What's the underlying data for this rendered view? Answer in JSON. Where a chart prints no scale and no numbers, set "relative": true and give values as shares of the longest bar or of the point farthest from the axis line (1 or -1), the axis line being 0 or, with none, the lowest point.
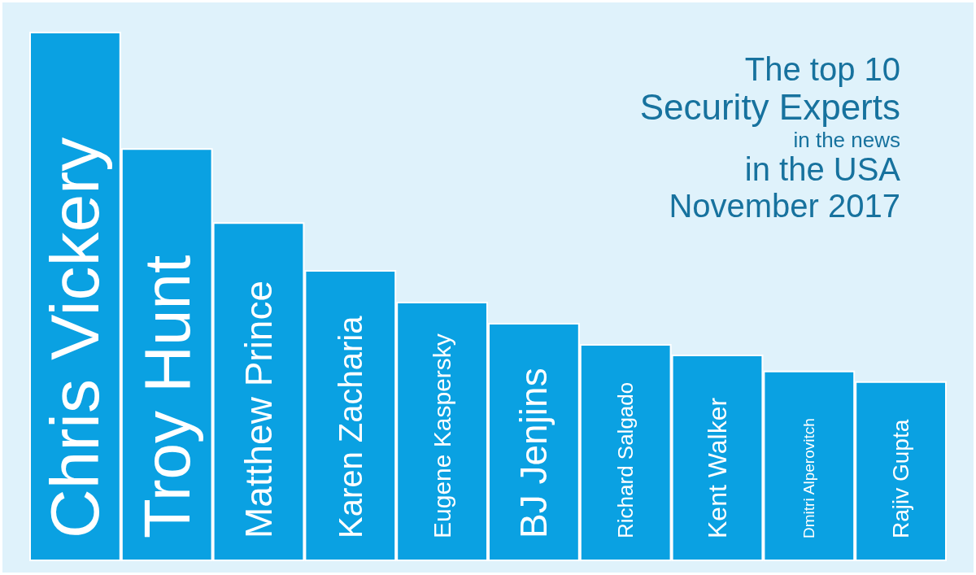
{
  "chart_data": {
    "type": "bar",
    "title": "The top 10\nSecurity Experts\nin the news\nin the USA\nNovember 2017",
    "categories": [
      "Chris Vickery",
      "Troy Hunt",
      "Matthew Prince",
      "Karen Zacharia",
      "Eugene Kaspersky",
      "BJ Jenjins",
      "Richard Salgado",
      "Kent Walker",
      "Dmitri Alperovitch",
      "Rajiv Gupta"
    ],
    "values": [
      1,
      0.78,
      0.64,
      0.55,
      0.49,
      0.45,
      0.41,
      0.39,
      0.36,
      0.34
    ],
    "color": "#0aa1e2",
    "relative": true
  }
}
